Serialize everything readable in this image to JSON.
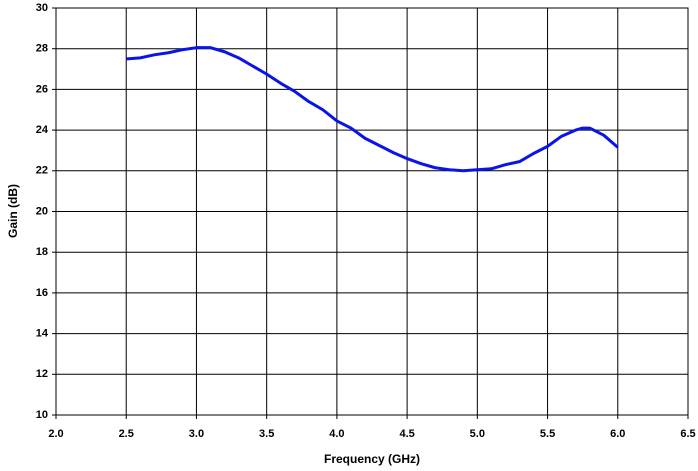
{
  "chart_data": {
    "type": "line",
    "xlabel": "Frequency (GHz)",
    "ylabel": "Gain (dB)",
    "x": [
      2.5,
      2.6,
      2.7,
      2.8,
      2.9,
      3.0,
      3.1,
      3.2,
      3.3,
      3.4,
      3.5,
      3.6,
      3.7,
      3.8,
      3.9,
      4.0,
      4.1,
      4.2,
      4.3,
      4.4,
      4.5,
      4.6,
      4.7,
      4.8,
      4.9,
      5.0,
      5.1,
      5.2,
      5.3,
      5.4,
      5.5,
      5.6,
      5.7,
      5.75,
      5.8,
      5.9,
      6.0
    ],
    "series": [
      {
        "color": "#0a14e6",
        "values": [
          27.5,
          27.55,
          27.7,
          27.8,
          27.95,
          28.05,
          28.05,
          27.85,
          27.55,
          27.15,
          26.75,
          26.3,
          25.9,
          25.4,
          25.0,
          24.45,
          24.1,
          23.6,
          23.25,
          22.9,
          22.6,
          22.35,
          22.15,
          22.05,
          22.0,
          22.05,
          22.1,
          22.3,
          22.45,
          22.85,
          23.2,
          23.7,
          24.0,
          24.1,
          24.1,
          23.75,
          23.15
        ]
      }
    ],
    "xlim": [
      2.0,
      6.5
    ],
    "xticks": [
      {
        "value": 2.0,
        "label": "2.0"
      },
      2.5,
      {
        "value": 3.0,
        "label": "3.0"
      },
      3.5,
      {
        "value": 4.0,
        "label": "4.0"
      },
      4.5,
      {
        "value": 5.0,
        "label": "5.0"
      },
      5.5,
      {
        "value": 6.0,
        "label": "6.0"
      },
      6.5
    ],
    "ylim": [
      10,
      30
    ],
    "yticks": [
      10,
      12,
      14,
      16,
      18,
      20,
      22,
      24,
      26,
      28,
      30
    ],
    "grid": true
  }
}
